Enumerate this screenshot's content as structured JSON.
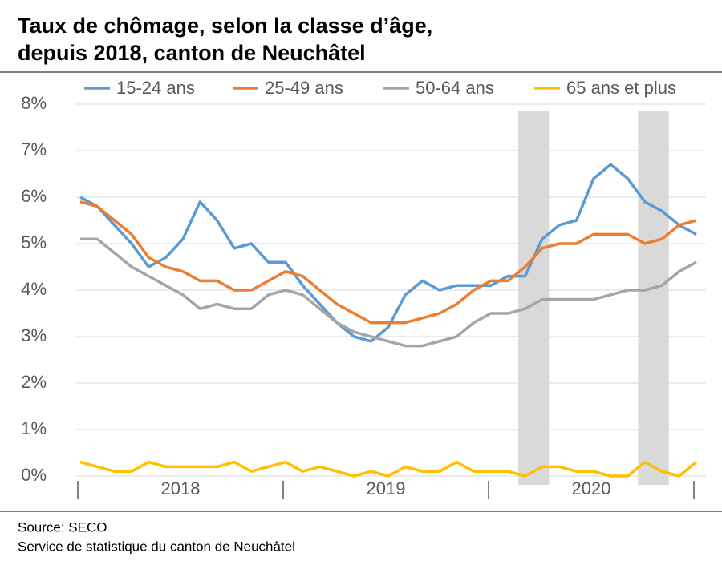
{
  "chart_data": {
    "type": "line",
    "title": [
      "Taux de chômage, selon la classe d’âge,",
      "depuis 2018, canton de Neuchâtel"
    ],
    "source": [
      "Source: SECO",
      "Service de statistique du canton de Neuchâtel"
    ],
    "categories": [
      null,
      null,
      null,
      null,
      null,
      null,
      null,
      null,
      null,
      null,
      null,
      null,
      null,
      null,
      null,
      null,
      null,
      null,
      null,
      null,
      null,
      null,
      null,
      null,
      null,
      null,
      null,
      null,
      null,
      null,
      null,
      null,
      null,
      null,
      null,
      null,
      null
    ],
    "x_groups": [
      "2018",
      "2019",
      "2020"
    ],
    "shaded": [
      [
        26,
        27
      ],
      [
        33,
        34
      ]
    ],
    "ylim": [
      0,
      8
    ],
    "yticks": [
      {
        "value": 0,
        "label": "0%"
      },
      {
        "value": 1,
        "label": "1%"
      },
      {
        "value": 2,
        "label": "2%"
      },
      {
        "value": 3,
        "label": "3%"
      },
      {
        "value": 4,
        "label": "4%"
      },
      {
        "value": 5,
        "label": "5%"
      },
      {
        "value": 6,
        "label": "6%"
      },
      {
        "value": 7,
        "label": "7%"
      },
      {
        "value": 8,
        "label": "8%"
      }
    ],
    "grid": true,
    "series": [
      {
        "name": "15-24 ans",
        "color": "#5b9bd5",
        "values": [
          6.0,
          5.8,
          5.4,
          5.0,
          4.5,
          4.7,
          5.1,
          5.9,
          5.5,
          4.9,
          5.0,
          4.6,
          4.6,
          4.1,
          3.7,
          3.3,
          3.0,
          2.9,
          3.2,
          3.9,
          4.2,
          4.0,
          4.1,
          4.1,
          4.1,
          4.3,
          4.3,
          5.1,
          5.4,
          5.5,
          6.4,
          6.7,
          6.4,
          5.9,
          5.7,
          5.4,
          5.2
        ]
      },
      {
        "name": "25-49 ans",
        "color": "#ed7d31",
        "values": [
          5.9,
          5.8,
          5.5,
          5.2,
          4.7,
          4.5,
          4.4,
          4.2,
          4.2,
          4.0,
          4.0,
          4.2,
          4.4,
          4.3,
          4.0,
          3.7,
          3.5,
          3.3,
          3.3,
          3.3,
          3.4,
          3.5,
          3.7,
          4.0,
          4.2,
          4.2,
          4.5,
          4.9,
          5.0,
          5.0,
          5.2,
          5.2,
          5.2,
          5.0,
          5.1,
          5.4,
          5.5
        ]
      },
      {
        "name": "50-64 ans",
        "color": "#a5a5a5",
        "values": [
          5.1,
          5.1,
          4.8,
          4.5,
          4.3,
          4.1,
          3.9,
          3.6,
          3.7,
          3.6,
          3.6,
          3.9,
          4.0,
          3.9,
          3.6,
          3.3,
          3.1,
          3.0,
          2.9,
          2.8,
          2.8,
          2.9,
          3.0,
          3.3,
          3.5,
          3.5,
          3.6,
          3.8,
          3.8,
          3.8,
          3.8,
          3.9,
          4.0,
          4.0,
          4.1,
          4.4,
          4.6
        ]
      },
      {
        "name": "65 ans et plus",
        "color": "#ffc000",
        "values": [
          0.3,
          0.2,
          0.1,
          0.1,
          0.3,
          0.2,
          0.2,
          0.2,
          0.2,
          0.3,
          0.1,
          0.2,
          0.3,
          0.1,
          0.2,
          0.1,
          0.0,
          0.1,
          0.0,
          0.2,
          0.1,
          0.1,
          0.3,
          0.1,
          0.1,
          0.1,
          0.0,
          0.2,
          0.2,
          0.1,
          0.1,
          0.0,
          0.0,
          0.3,
          0.1,
          0.0,
          0.3
        ]
      }
    ]
  }
}
